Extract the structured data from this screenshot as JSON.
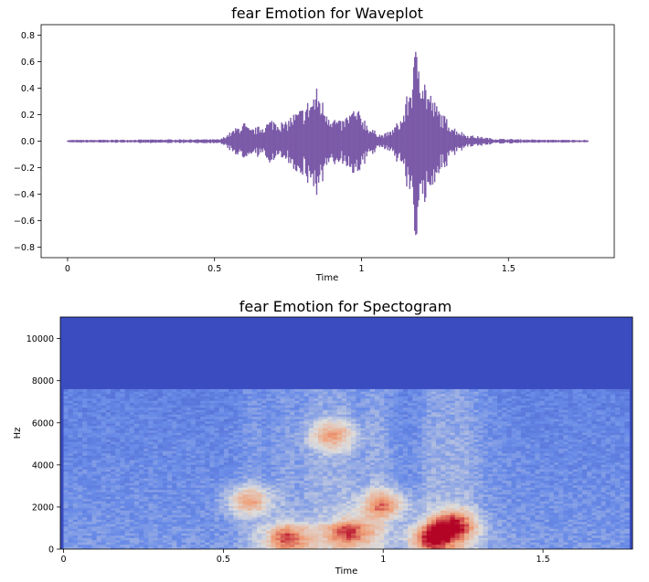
{
  "chart_data": [
    {
      "type": "line",
      "title": "fear Emotion for Waveplot",
      "xlabel": "Time",
      "ylabel": "",
      "xlim": [
        -0.09,
        1.86
      ],
      "ylim": [
        -0.88,
        0.88
      ],
      "x_ticks": [
        0,
        0.5,
        1,
        1.5
      ],
      "x_tick_labels": [
        "0",
        "0.5",
        "1",
        "1.5"
      ],
      "y_ticks": [
        0.8,
        0.6,
        0.4,
        0.2,
        0.0,
        -0.2,
        -0.4,
        -0.6,
        -0.8
      ],
      "y_tick_labels": [
        "0.8",
        "0.6",
        "0.4",
        "0.2",
        "0.0",
        "−0.2",
        "−0.4",
        "−0.6",
        "−0.8"
      ],
      "grid": false,
      "color": "#7b5aa8",
      "series": [
        {
          "kind": "amplitude_envelope",
          "x": [
            0.0,
            0.2,
            0.4,
            0.52,
            0.56,
            0.6,
            0.62,
            0.66,
            0.7,
            0.74,
            0.76,
            0.8,
            0.83,
            0.85,
            0.87,
            0.9,
            0.93,
            0.97,
            1.0,
            1.03,
            1.07,
            1.1,
            1.14,
            1.17,
            1.19,
            1.22,
            1.25,
            1.28,
            1.32,
            1.36,
            1.45,
            1.6,
            1.77
          ],
          "values": [
            0.01,
            0.012,
            0.015,
            0.015,
            0.08,
            0.15,
            0.09,
            0.12,
            0.18,
            0.14,
            0.2,
            0.26,
            0.35,
            0.42,
            0.3,
            0.2,
            0.15,
            0.25,
            0.22,
            0.1,
            0.05,
            0.08,
            0.2,
            0.5,
            0.8,
            0.45,
            0.3,
            0.2,
            0.1,
            0.05,
            0.02,
            0.012,
            0.01
          ]
        }
      ]
    },
    {
      "type": "heatmap",
      "title": "fear Emotion for Spectogram",
      "xlabel": "Time",
      "ylabel": "Hz",
      "xlim": [
        -0.01,
        1.78
      ],
      "ylim": [
        0,
        11025
      ],
      "x_ticks": [
        0,
        0.5,
        1,
        1.5
      ],
      "x_tick_labels": [
        "0",
        "0.5",
        "1",
        "1.5"
      ],
      "y_ticks": [
        0,
        2000,
        4000,
        6000,
        8000,
        10000
      ],
      "y_tick_labels": [
        "0",
        "2000",
        "4000",
        "6000",
        "8000",
        "10000"
      ],
      "colormap": "coolwarm",
      "background_color": "#3a4cc0",
      "cutoff_hz": 7600,
      "hot_regions": [
        {
          "t": 0.7,
          "hz": 500,
          "intensity": 0.85
        },
        {
          "t": 0.9,
          "hz": 800,
          "intensity": 0.8
        },
        {
          "t": 1.0,
          "hz": 2100,
          "intensity": 0.8
        },
        {
          "t": 1.22,
          "hz": 1200,
          "intensity": 0.95
        },
        {
          "t": 1.15,
          "hz": 500,
          "intensity": 0.9
        },
        {
          "t": 0.58,
          "hz": 2300,
          "intensity": 0.7
        },
        {
          "t": 0.84,
          "hz": 5400,
          "intensity": 0.65
        }
      ]
    }
  ]
}
